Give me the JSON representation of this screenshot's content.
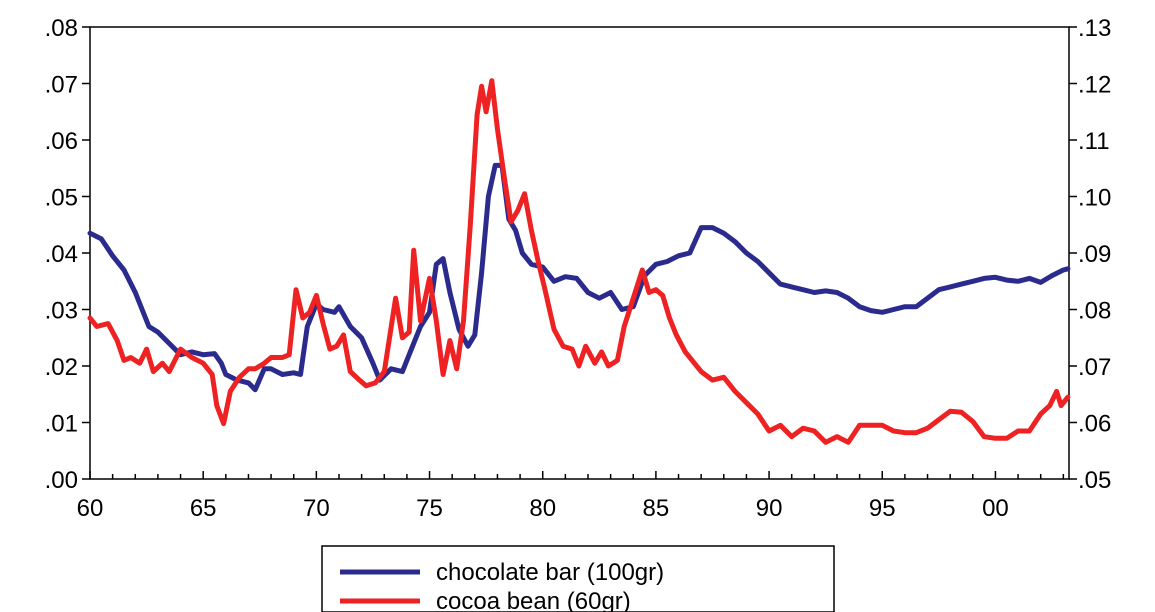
{
  "chart_data": {
    "type": "line",
    "title": "",
    "xlabel": "",
    "ylabel": "",
    "x_ticks": [
      {
        "value": 1960,
        "label": "60"
      },
      {
        "value": 1965,
        "label": "65"
      },
      {
        "value": 1970,
        "label": "70"
      },
      {
        "value": 1975,
        "label": "75"
      },
      {
        "value": 1980,
        "label": "80"
      },
      {
        "value": 1985,
        "label": "85"
      },
      {
        "value": 1990,
        "label": "90"
      },
      {
        "value": 1995,
        "label": "95"
      },
      {
        "value": 2000,
        "label": "00"
      }
    ],
    "xlim": [
      1960,
      2003.25
    ],
    "y_left": {
      "range": [
        0.0,
        0.08
      ],
      "ticks": [
        {
          "value": 0.0,
          "label": ".00"
        },
        {
          "value": 0.01,
          "label": ".01"
        },
        {
          "value": 0.02,
          "label": ".02"
        },
        {
          "value": 0.03,
          "label": ".03"
        },
        {
          "value": 0.04,
          "label": ".04"
        },
        {
          "value": 0.05,
          "label": ".05"
        },
        {
          "value": 0.06,
          "label": ".06"
        },
        {
          "value": 0.07,
          "label": ".07"
        },
        {
          "value": 0.08,
          "label": ".08"
        }
      ]
    },
    "y_right": {
      "range": [
        0.05,
        0.13
      ],
      "ticks": [
        {
          "value": 0.05,
          "label": ".05"
        },
        {
          "value": 0.06,
          "label": ".06"
        },
        {
          "value": 0.07,
          "label": ".07"
        },
        {
          "value": 0.08,
          "label": ".08"
        },
        {
          "value": 0.09,
          "label": ".09"
        },
        {
          "value": 0.1,
          "label": ".10"
        },
        {
          "value": 0.11,
          "label": ".11"
        },
        {
          "value": 0.12,
          "label": ".12"
        },
        {
          "value": 0.13,
          "label": ".13"
        }
      ]
    },
    "grid": false,
    "legend_position": "bottom-center",
    "series": [
      {
        "name": "chocolate bar (100gr)",
        "axis": "left",
        "color": "#2b2b8e",
        "points": [
          [
            1960.0,
            0.0435
          ],
          [
            1960.5,
            0.0425
          ],
          [
            1961.0,
            0.0395
          ],
          [
            1961.5,
            0.037
          ],
          [
            1962.0,
            0.033
          ],
          [
            1962.3,
            0.03
          ],
          [
            1962.6,
            0.027
          ],
          [
            1963.0,
            0.026
          ],
          [
            1963.5,
            0.024
          ],
          [
            1964.0,
            0.022
          ],
          [
            1964.5,
            0.0225
          ],
          [
            1965.0,
            0.022
          ],
          [
            1965.5,
            0.0222
          ],
          [
            1965.8,
            0.0205
          ],
          [
            1966.0,
            0.0185
          ],
          [
            1966.5,
            0.0175
          ],
          [
            1967.0,
            0.017
          ],
          [
            1967.3,
            0.0158
          ],
          [
            1967.7,
            0.0195
          ],
          [
            1968.0,
            0.0195
          ],
          [
            1968.5,
            0.0185
          ],
          [
            1969.0,
            0.0188
          ],
          [
            1969.3,
            0.0185
          ],
          [
            1969.6,
            0.027
          ],
          [
            1970.0,
            0.031
          ],
          [
            1970.3,
            0.03
          ],
          [
            1970.8,
            0.0295
          ],
          [
            1971.0,
            0.0305
          ],
          [
            1971.5,
            0.027
          ],
          [
            1972.0,
            0.025
          ],
          [
            1972.5,
            0.0205
          ],
          [
            1972.8,
            0.0175
          ],
          [
            1973.3,
            0.0195
          ],
          [
            1973.8,
            0.019
          ],
          [
            1974.2,
            0.023
          ],
          [
            1974.6,
            0.027
          ],
          [
            1975.0,
            0.0295
          ],
          [
            1975.3,
            0.038
          ],
          [
            1975.6,
            0.039
          ],
          [
            1975.9,
            0.033
          ],
          [
            1976.3,
            0.0265
          ],
          [
            1976.7,
            0.0235
          ],
          [
            1977.0,
            0.0255
          ],
          [
            1977.3,
            0.0365
          ],
          [
            1977.6,
            0.05
          ],
          [
            1977.9,
            0.0555
          ],
          [
            1978.2,
            0.0555
          ],
          [
            1978.5,
            0.046
          ],
          [
            1978.8,
            0.044
          ],
          [
            1979.1,
            0.04
          ],
          [
            1979.5,
            0.038
          ],
          [
            1980.0,
            0.0375
          ],
          [
            1980.5,
            0.035
          ],
          [
            1981.0,
            0.0358
          ],
          [
            1981.5,
            0.0355
          ],
          [
            1982.0,
            0.033
          ],
          [
            1982.5,
            0.032
          ],
          [
            1983.0,
            0.033
          ],
          [
            1983.5,
            0.03
          ],
          [
            1984.0,
            0.0305
          ],
          [
            1984.5,
            0.036
          ],
          [
            1985.0,
            0.038
          ],
          [
            1985.5,
            0.0385
          ],
          [
            1986.0,
            0.0395
          ],
          [
            1986.5,
            0.04
          ],
          [
            1987.0,
            0.0445
          ],
          [
            1987.5,
            0.0445
          ],
          [
            1988.0,
            0.0435
          ],
          [
            1988.5,
            0.042
          ],
          [
            1989.0,
            0.04
          ],
          [
            1989.5,
            0.0385
          ],
          [
            1990.0,
            0.0365
          ],
          [
            1990.5,
            0.0345
          ],
          [
            1991.0,
            0.034
          ],
          [
            1991.5,
            0.0335
          ],
          [
            1992.0,
            0.033
          ],
          [
            1992.5,
            0.0333
          ],
          [
            1993.0,
            0.033
          ],
          [
            1993.5,
            0.032
          ],
          [
            1994.0,
            0.0305
          ],
          [
            1994.5,
            0.0298
          ],
          [
            1995.0,
            0.0295
          ],
          [
            1995.5,
            0.03
          ],
          [
            1996.0,
            0.0305
          ],
          [
            1996.5,
            0.0305
          ],
          [
            1997.0,
            0.032
          ],
          [
            1997.5,
            0.0335
          ],
          [
            1998.0,
            0.034
          ],
          [
            1998.5,
            0.0345
          ],
          [
            1999.0,
            0.035
          ],
          [
            1999.5,
            0.0355
          ],
          [
            2000.0,
            0.0357
          ],
          [
            2000.5,
            0.0352
          ],
          [
            2001.0,
            0.035
          ],
          [
            2001.5,
            0.0355
          ],
          [
            2002.0,
            0.0348
          ],
          [
            2002.5,
            0.036
          ],
          [
            2003.0,
            0.037
          ],
          [
            2003.2,
            0.0372
          ]
        ]
      },
      {
        "name": "cocoa bean (60gr)",
        "axis": "right",
        "color": "#ee2222",
        "points": [
          [
            1960.0,
            0.0785
          ],
          [
            1960.3,
            0.077
          ],
          [
            1960.8,
            0.0775
          ],
          [
            1961.2,
            0.0745
          ],
          [
            1961.5,
            0.071
          ],
          [
            1961.8,
            0.0715
          ],
          [
            1962.2,
            0.0705
          ],
          [
            1962.5,
            0.073
          ],
          [
            1962.8,
            0.069
          ],
          [
            1963.2,
            0.0705
          ],
          [
            1963.5,
            0.069
          ],
          [
            1964.0,
            0.073
          ],
          [
            1964.5,
            0.0715
          ],
          [
            1965.0,
            0.0705
          ],
          [
            1965.4,
            0.0685
          ],
          [
            1965.6,
            0.063
          ],
          [
            1965.9,
            0.0598
          ],
          [
            1966.2,
            0.0655
          ],
          [
            1966.6,
            0.068
          ],
          [
            1967.0,
            0.0695
          ],
          [
            1967.3,
            0.0695
          ],
          [
            1967.7,
            0.0705
          ],
          [
            1968.0,
            0.0715
          ],
          [
            1968.5,
            0.0715
          ],
          [
            1968.8,
            0.072
          ],
          [
            1969.1,
            0.0835
          ],
          [
            1969.4,
            0.0785
          ],
          [
            1969.7,
            0.0795
          ],
          [
            1970.0,
            0.0825
          ],
          [
            1970.3,
            0.0775
          ],
          [
            1970.6,
            0.073
          ],
          [
            1970.9,
            0.0735
          ],
          [
            1971.2,
            0.0755
          ],
          [
            1971.5,
            0.069
          ],
          [
            1971.9,
            0.0675
          ],
          [
            1972.2,
            0.0665
          ],
          [
            1972.6,
            0.067
          ],
          [
            1973.0,
            0.069
          ],
          [
            1973.5,
            0.082
          ],
          [
            1973.8,
            0.075
          ],
          [
            1974.1,
            0.076
          ],
          [
            1974.3,
            0.0905
          ],
          [
            1974.6,
            0.078
          ],
          [
            1975.0,
            0.0855
          ],
          [
            1975.3,
            0.078
          ],
          [
            1975.6,
            0.0685
          ],
          [
            1975.9,
            0.0745
          ],
          [
            1976.2,
            0.0695
          ],
          [
            1976.5,
            0.078
          ],
          [
            1976.8,
            0.095
          ],
          [
            1977.1,
            0.1145
          ],
          [
            1977.3,
            0.1195
          ],
          [
            1977.5,
            0.115
          ],
          [
            1977.75,
            0.1205
          ],
          [
            1978.0,
            0.112
          ],
          [
            1978.3,
            0.1035
          ],
          [
            1978.6,
            0.0955
          ],
          [
            1978.9,
            0.0975
          ],
          [
            1979.2,
            0.1005
          ],
          [
            1979.5,
            0.094
          ],
          [
            1979.8,
            0.0885
          ],
          [
            1980.1,
            0.0835
          ],
          [
            1980.5,
            0.0765
          ],
          [
            1980.9,
            0.0735
          ],
          [
            1981.3,
            0.073
          ],
          [
            1981.6,
            0.07
          ],
          [
            1981.9,
            0.0735
          ],
          [
            1982.3,
            0.0705
          ],
          [
            1982.6,
            0.0725
          ],
          [
            1982.9,
            0.07
          ],
          [
            1983.3,
            0.071
          ],
          [
            1983.6,
            0.077
          ],
          [
            1984.0,
            0.082
          ],
          [
            1984.4,
            0.087
          ],
          [
            1984.7,
            0.083
          ],
          [
            1985.0,
            0.0835
          ],
          [
            1985.3,
            0.0825
          ],
          [
            1985.6,
            0.0785
          ],
          [
            1985.9,
            0.0755
          ],
          [
            1986.3,
            0.0725
          ],
          [
            1986.7,
            0.0705
          ],
          [
            1987.0,
            0.069
          ],
          [
            1987.5,
            0.0675
          ],
          [
            1988.0,
            0.068
          ],
          [
            1988.5,
            0.0655
          ],
          [
            1989.0,
            0.0635
          ],
          [
            1989.5,
            0.0615
          ],
          [
            1990.0,
            0.0585
          ],
          [
            1990.5,
            0.0595
          ],
          [
            1991.0,
            0.0575
          ],
          [
            1991.5,
            0.059
          ],
          [
            1992.0,
            0.0585
          ],
          [
            1992.5,
            0.0565
          ],
          [
            1993.0,
            0.0575
          ],
          [
            1993.5,
            0.0565
          ],
          [
            1994.0,
            0.0595
          ],
          [
            1994.5,
            0.0595
          ],
          [
            1995.0,
            0.0595
          ],
          [
            1995.5,
            0.0585
          ],
          [
            1996.0,
            0.0582
          ],
          [
            1996.5,
            0.0582
          ],
          [
            1997.0,
            0.059
          ],
          [
            1997.5,
            0.0605
          ],
          [
            1998.0,
            0.062
          ],
          [
            1998.5,
            0.0618
          ],
          [
            1999.0,
            0.0602
          ],
          [
            1999.5,
            0.0575
          ],
          [
            2000.0,
            0.0572
          ],
          [
            2000.5,
            0.0572
          ],
          [
            2001.0,
            0.0585
          ],
          [
            2001.5,
            0.0585
          ],
          [
            2002.0,
            0.0615
          ],
          [
            2002.4,
            0.063
          ],
          [
            2002.7,
            0.0655
          ],
          [
            2002.9,
            0.063
          ],
          [
            2003.2,
            0.0645
          ]
        ]
      }
    ]
  }
}
